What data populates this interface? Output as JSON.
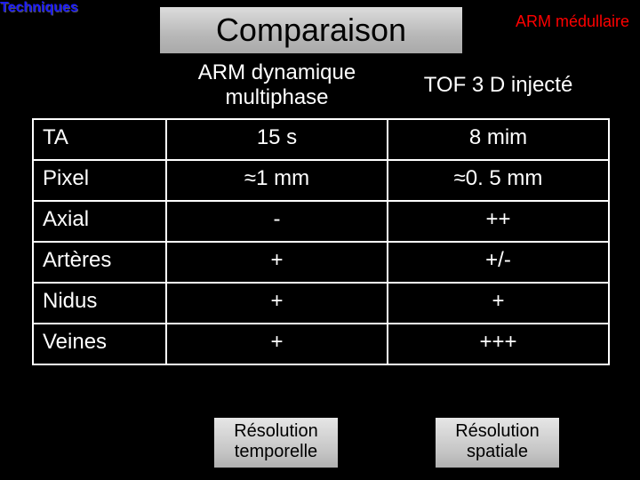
{
  "labels": {
    "topLeft": "Techniques",
    "topRight": "ARM médullaire",
    "title": "Comparaison"
  },
  "table": {
    "header": {
      "col0": "",
      "col1_line1": "ARM dynamique",
      "col1_line2": "multiphase",
      "col2": "TOF 3 D injecté"
    },
    "rows": [
      {
        "label": "TA",
        "c1": "15 s",
        "c2": "8 mim"
      },
      {
        "label": "Pixel",
        "c1": "≈1 mm",
        "c2": "≈0. 5 mm"
      },
      {
        "label": "Axial",
        "c1": "-",
        "c2": "++"
      },
      {
        "label": "Artères",
        "c1": "+",
        "c2": "+/-"
      },
      {
        "label": "Nidus",
        "c1": "+",
        "c2": "+"
      },
      {
        "label": "Veines",
        "c1": "+",
        "c2": "+++"
      }
    ]
  },
  "footer": {
    "left_line1": "Résolution",
    "left_line2": "temporelle",
    "right_line1": "Résolution",
    "right_line2": "spatiale"
  },
  "style": {
    "background": "#000000",
    "textColor": "#ffffff",
    "borderColor": "#ffffff",
    "topLeftColor": "#1a1aff",
    "topRightColor": "#ff0000",
    "titleGradientTop": "#dcdcdc",
    "titleGradientBottom": "#a9a9a9",
    "footerGradientTop": "#e6e6e6",
    "footerGradientBottom": "#b0b0b0",
    "title_fontsize": 36,
    "cell_fontsize": 24,
    "footer_fontsize": 20
  }
}
